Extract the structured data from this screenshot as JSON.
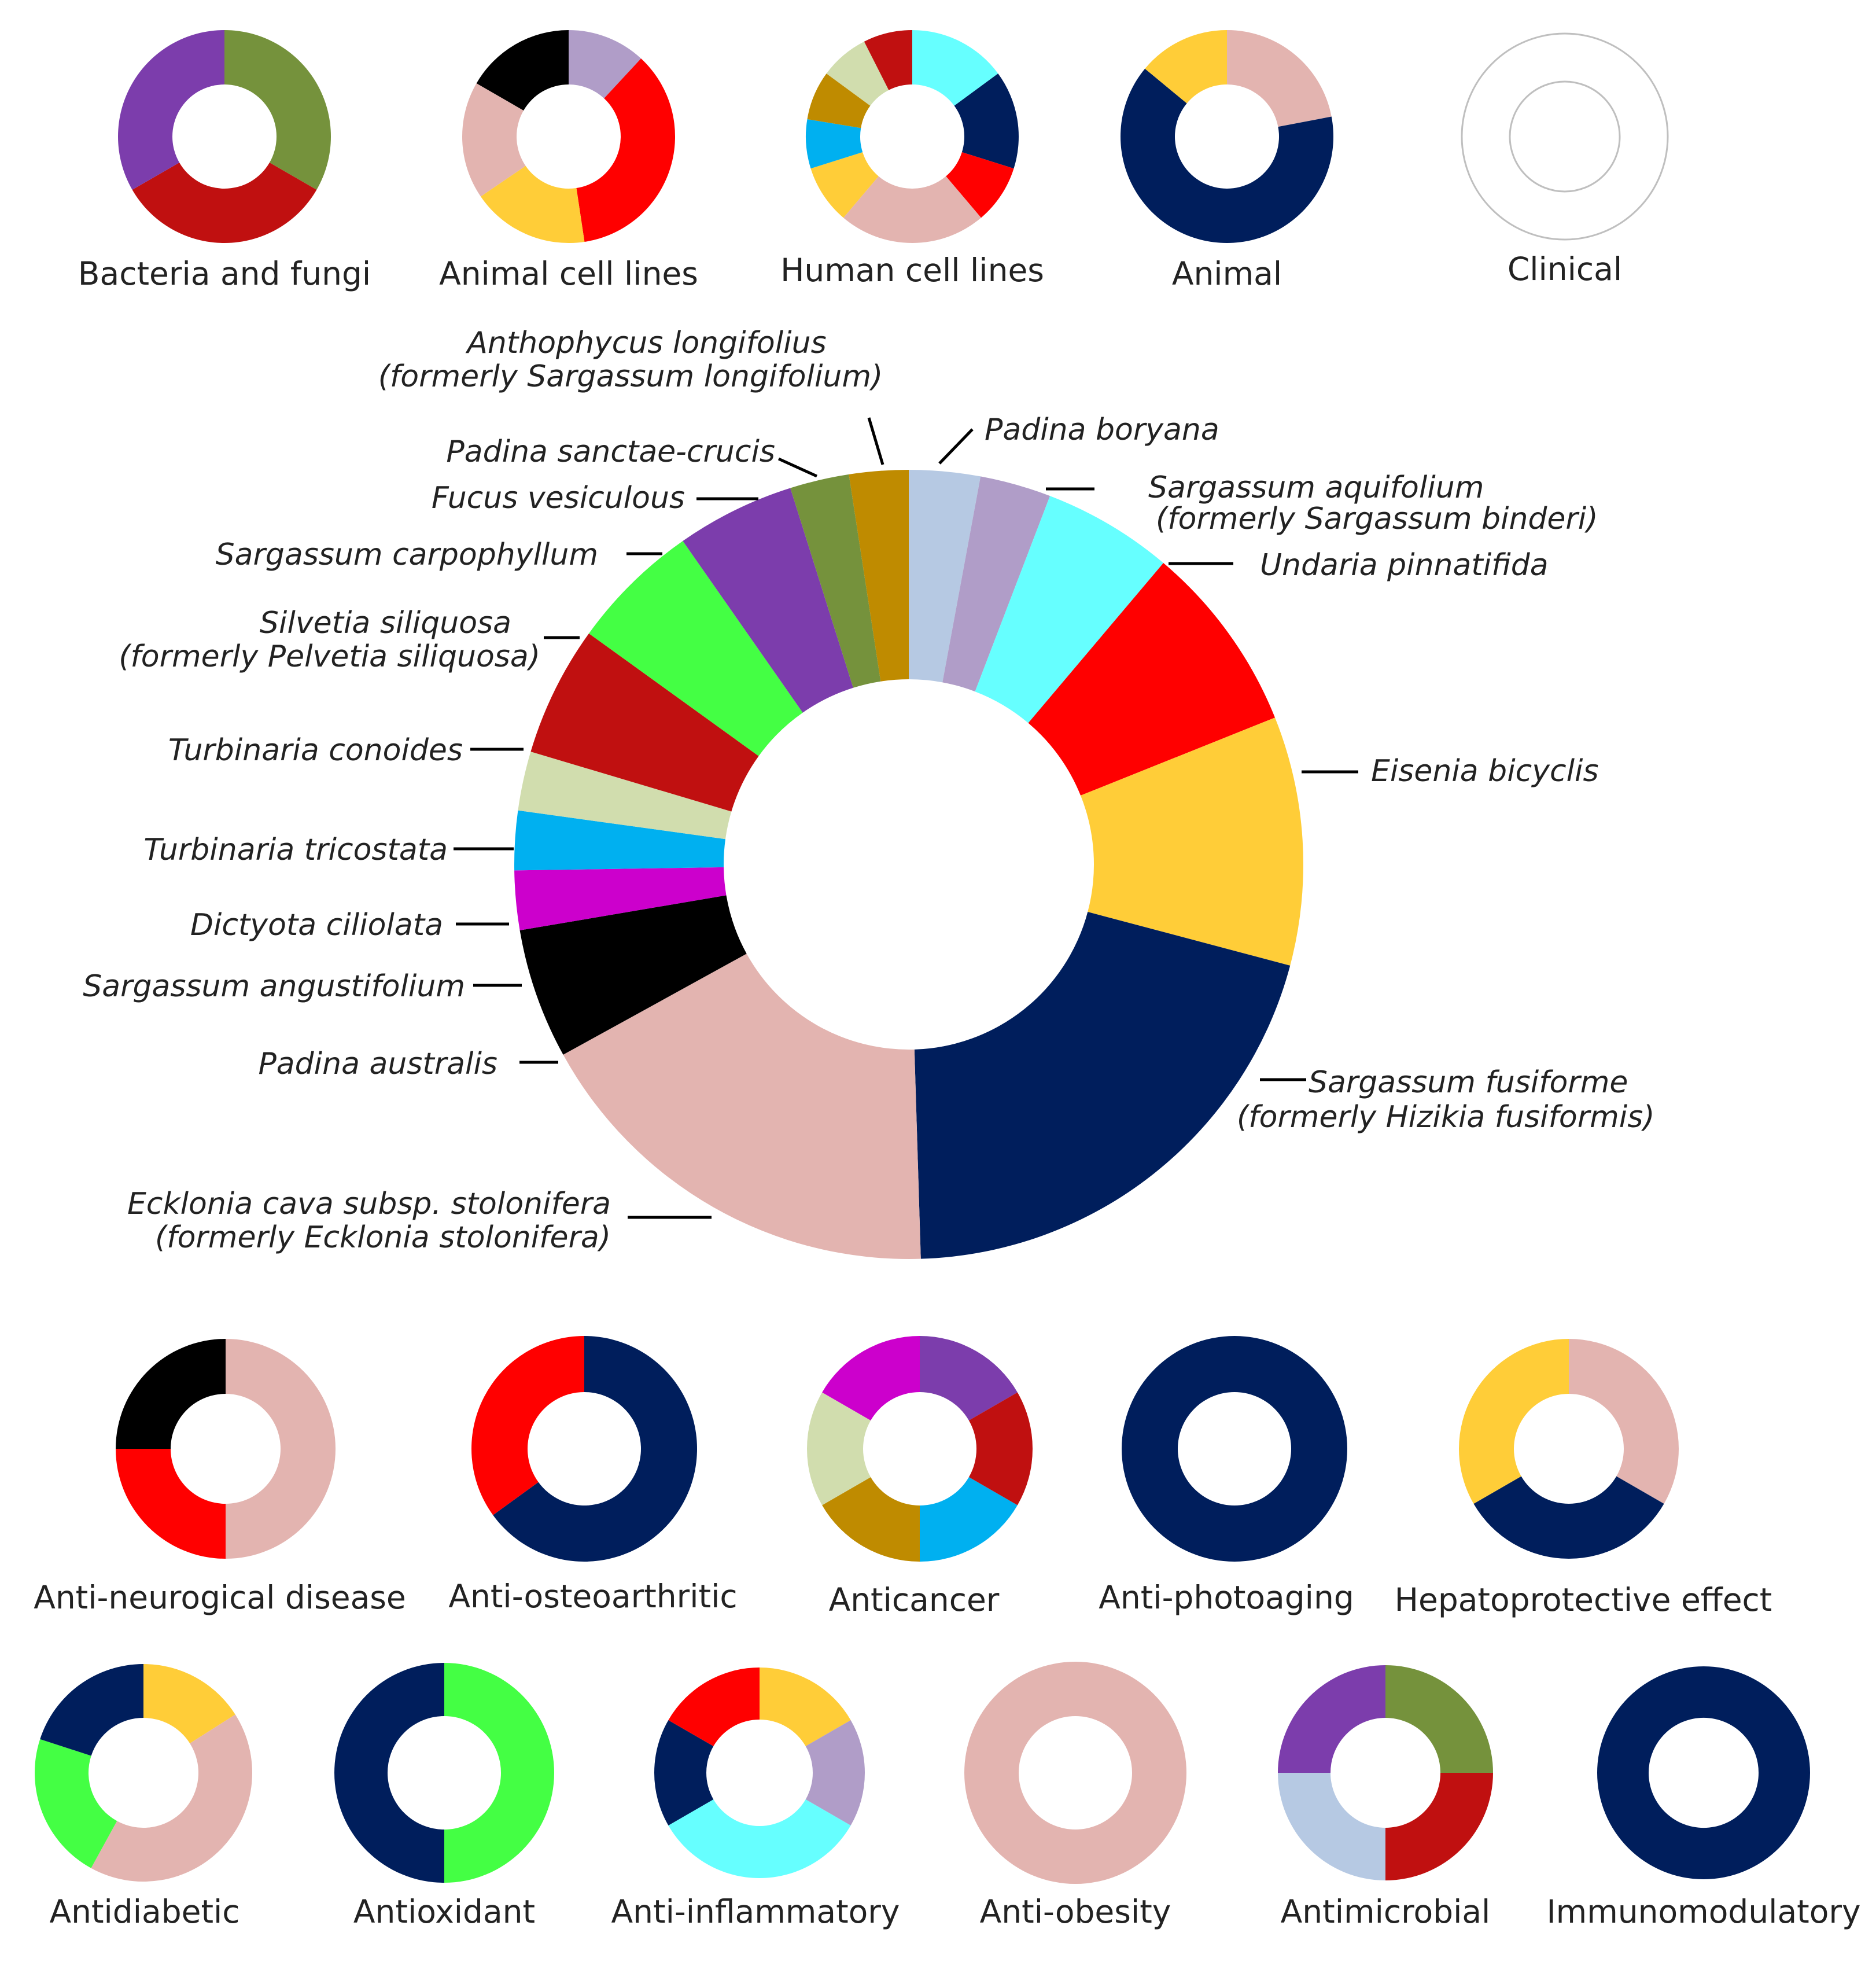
{
  "colors": {
    "anthophycus": "#b6c9e3",
    "padina_boryana": "#b09dc8",
    "sargassum_aquifolium": "#66ffff",
    "undaria": "#ff0000",
    "eisenia": "#ffcd38",
    "sargassum_fusiforme": "#001e5c",
    "ecklonia": "#e3b4b0",
    "padina_australis": "#000000",
    "sargassum_angustifolium": "#cc00cc",
    "dictyota": "#00b0f0",
    "turbinaria_tricostata": "#d1ddae",
    "turbinaria_conoides": "#c01010",
    "silvetia": "#44ff44",
    "sargassum_carpophyllum": "#7c3dac",
    "fucus": "#75923c",
    "padina_sanctae": "#bf8b00"
  },
  "chart_data": [
    {
      "type": "donut",
      "slices": [
        {
          "key": "anthophycus",
          "label": "Anthophycus longifolius",
          "label_note": "(formerly Sargassum longifolium)",
          "value": 3.0
        },
        {
          "key": "padina_boryana",
          "label": "Padina boryana",
          "value": 3.0
        },
        {
          "key": "sargassum_aquifolium",
          "label": "Sargassum aquifolium",
          "label_note": "(formerly Sargassum binderi)",
          "value": 5.5
        },
        {
          "key": "undaria",
          "label": "Undaria pinnatifida",
          "value": 8.0
        },
        {
          "key": "eisenia",
          "label": "Eisenia bicyclis",
          "value": 10.5
        },
        {
          "key": "sargassum_fusiforme",
          "label": "Sargassum fusiforme",
          "label_note": "(formerly Hizikia fusiformis)",
          "value": 21.0
        },
        {
          "key": "ecklonia",
          "label": "Ecklonia cava subsp. stolonifera",
          "label_note": "(formerly Ecklonia stolonifera)",
          "value": 18.0
        },
        {
          "key": "padina_australis",
          "label": "Padina australis",
          "value": 5.5
        },
        {
          "key": "sargassum_angustifolium",
          "label": "Sargassum angustifolium",
          "value": 2.5
        },
        {
          "key": "dictyota",
          "label": "Dictyota ciliolata",
          "value": 2.5
        },
        {
          "key": "turbinaria_tricostata",
          "label": "Turbinaria tricostata",
          "value": 2.5
        },
        {
          "key": "turbinaria_conoides",
          "label": "Turbinaria conoides",
          "value": 5.5
        },
        {
          "key": "silvetia",
          "label": "Silvetia siliquosa",
          "label_note": "(formerly Pelvetia siliquosa)",
          "value": 5.5
        },
        {
          "key": "sargassum_carpophyllum",
          "label": "Sargassum carpophyllum",
          "value": 5.0
        },
        {
          "key": "fucus",
          "label": "Fucus vesiculous",
          "value": 2.5
        },
        {
          "key": "padina_sanctae",
          "label": "Padina sanctae-crucis",
          "value": 2.5
        }
      ]
    },
    {
      "type": "donut",
      "label": "Bacteria and fungi",
      "slices": [
        {
          "key": "fucus",
          "value": 1
        },
        {
          "key": "turbinaria_conoides",
          "value": 1
        },
        {
          "key": "sargassum_carpophyllum",
          "value": 1
        }
      ]
    },
    {
      "type": "donut",
      "label": "Animal cell lines",
      "slices": [
        {
          "key": "padina_boryana",
          "value": 1
        },
        {
          "key": "undaria",
          "value": 3
        },
        {
          "key": "eisenia",
          "value": 1.5
        },
        {
          "key": "ecklonia",
          "value": 1.5
        },
        {
          "key": "padina_australis",
          "value": 1.4
        }
      ]
    },
    {
      "type": "donut",
      "label": "Human cell lines",
      "slices": [
        {
          "key": "sargassum_aquifolium",
          "value": 2
        },
        {
          "key": "sargassum_fusiforme",
          "value": 2
        },
        {
          "key": "undaria",
          "value": 1.2
        },
        {
          "key": "ecklonia",
          "value": 3
        },
        {
          "key": "eisenia",
          "value": 1.2
        },
        {
          "key": "dictyota",
          "value": 1
        },
        {
          "key": "padina_sanctae",
          "value": 1
        },
        {
          "key": "turbinaria_tricostata",
          "value": 1
        },
        {
          "key": "turbinaria_conoides",
          "value": 1
        }
      ]
    },
    {
      "type": "donut",
      "label": "Animal",
      "slices": [
        {
          "key": "ecklonia",
          "value": 22
        },
        {
          "key": "sargassum_fusiforme",
          "value": 64
        },
        {
          "key": "eisenia",
          "value": 14
        }
      ]
    },
    {
      "type": "donut",
      "label": "Clinical",
      "slices": []
    },
    {
      "type": "donut",
      "label": "Anti-neurogical disease",
      "slices": [
        {
          "key": "ecklonia",
          "value": 50
        },
        {
          "key": "undaria",
          "value": 25
        },
        {
          "key": "padina_australis",
          "value": 25
        }
      ]
    },
    {
      "type": "donut",
      "label": "Anti-osteoarthritic",
      "slices": [
        {
          "key": "sargassum_fusiforme",
          "value": 65
        },
        {
          "key": "undaria",
          "value": 35
        }
      ]
    },
    {
      "type": "donut",
      "label": "Anticancer",
      "slices": [
        {
          "key": "sargassum_carpophyllum",
          "value": 1
        },
        {
          "key": "turbinaria_conoides",
          "value": 1
        },
        {
          "key": "dictyota",
          "value": 1
        },
        {
          "key": "padina_sanctae",
          "value": 1
        },
        {
          "key": "turbinaria_tricostata",
          "value": 1
        },
        {
          "key": "sargassum_angustifolium",
          "value": 1
        }
      ]
    },
    {
      "type": "donut",
      "label": "Anti-photoaging",
      "slices": [
        {
          "key": "sargassum_fusiforme",
          "value": 1
        }
      ]
    },
    {
      "type": "donut",
      "label": "Hepatoprotective effect",
      "slices": [
        {
          "key": "ecklonia",
          "value": 1
        },
        {
          "key": "sargassum_fusiforme",
          "value": 1
        },
        {
          "key": "eisenia",
          "value": 1
        }
      ]
    },
    {
      "type": "donut",
      "label": "Antidiabetic",
      "slices": [
        {
          "key": "eisenia",
          "value": 16
        },
        {
          "key": "ecklonia",
          "value": 42
        },
        {
          "key": "silvetia",
          "value": 22
        },
        {
          "key": "sargassum_fusiforme",
          "value": 20
        }
      ]
    },
    {
      "type": "donut",
      "label": "Antioxidant",
      "slices": [
        {
          "key": "silvetia",
          "value": 1
        },
        {
          "key": "sargassum_fusiforme",
          "value": 1
        }
      ]
    },
    {
      "type": "donut",
      "label": "Anti-inflammatory",
      "slices": [
        {
          "key": "eisenia",
          "value": 1
        },
        {
          "key": "padina_boryana",
          "value": 1
        },
        {
          "key": "sargassum_aquifolium",
          "value": 2
        },
        {
          "key": "sargassum_fusiforme",
          "value": 1
        },
        {
          "key": "undaria",
          "value": 1
        }
      ]
    },
    {
      "type": "donut",
      "label": "Anti-obesity",
      "slices": [
        {
          "key": "ecklonia",
          "value": 1
        }
      ]
    },
    {
      "type": "donut",
      "label": "Antimicrobial",
      "slices": [
        {
          "key": "fucus",
          "value": 1
        },
        {
          "key": "turbinaria_conoides",
          "value": 1
        },
        {
          "key": "anthophycus",
          "value": 1
        },
        {
          "key": "sargassum_carpophyllum",
          "value": 1
        }
      ]
    },
    {
      "type": "donut",
      "label": "Immunomodulatory",
      "slices": [
        {
          "key": "sargassum_fusiforme",
          "value": 1
        }
      ]
    }
  ]
}
